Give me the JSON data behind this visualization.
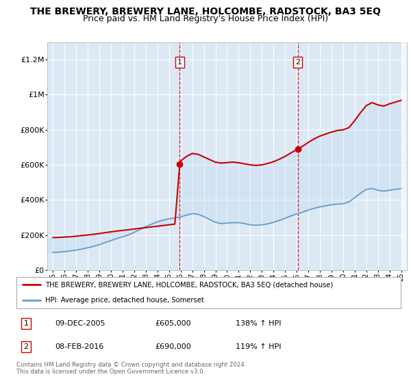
{
  "title": "THE BREWERY, BREWERY LANE, HOLCOMBE, RADSTOCK, BA3 5EQ",
  "subtitle": "Price paid vs. HM Land Registry's House Price Index (HPI)",
  "title_fontsize": 10,
  "subtitle_fontsize": 9,
  "ylim": [
    0,
    1300000
  ],
  "yticks": [
    0,
    200000,
    400000,
    600000,
    800000,
    1000000,
    1200000
  ],
  "ytick_labels": [
    "£0",
    "£200K",
    "£400K",
    "£600K",
    "£800K",
    "£1M",
    "£1.2M"
  ],
  "xlim_start": 1994.5,
  "xlim_end": 2025.5,
  "background_color": "#ffffff",
  "plot_bg_color": "#dce9f5",
  "grid_color": "#ffffff",
  "red_color": "#cc0000",
  "blue_color": "#6699cc",
  "sale1_x": 2005.92,
  "sale1_y": 605000,
  "sale2_x": 2016.1,
  "sale2_y": 690000,
  "legend_label_red": "THE BREWERY, BREWERY LANE, HOLCOMBE, RADSTOCK, BA3 5EQ (detached house)",
  "legend_label_blue": "HPI: Average price, detached house, Somerset",
  "annotation1_label": "1",
  "annotation2_label": "2",
  "table_row1": [
    "1",
    "09-DEC-2005",
    "£605,000",
    "138% ↑ HPI"
  ],
  "table_row2": [
    "2",
    "08-FEB-2016",
    "£690,000",
    "119% ↑ HPI"
  ],
  "footer": "Contains HM Land Registry data © Crown copyright and database right 2024.\nThis data is licensed under the Open Government Licence v3.0.",
  "hpi_years": [
    1995,
    1995.5,
    1996,
    1996.5,
    1997,
    1997.5,
    1998,
    1998.5,
    1999,
    1999.5,
    2000,
    2000.5,
    2001,
    2001.5,
    2002,
    2002.5,
    2003,
    2003.5,
    2004,
    2004.5,
    2005,
    2005.5,
    2006,
    2006.5,
    2007,
    2007.5,
    2008,
    2008.5,
    2009,
    2009.5,
    2010,
    2010.5,
    2011,
    2011.5,
    2012,
    2012.5,
    2013,
    2013.5,
    2014,
    2014.5,
    2015,
    2015.5,
    2016,
    2016.5,
    2017,
    2017.5,
    2018,
    2018.5,
    2019,
    2019.5,
    2020,
    2020.5,
    2021,
    2021.5,
    2022,
    2022.5,
    2023,
    2023.5,
    2024,
    2024.5,
    2025
  ],
  "hpi_values": [
    100000,
    102000,
    105000,
    109000,
    114000,
    120000,
    127000,
    135000,
    145000,
    157000,
    168000,
    180000,
    190000,
    200000,
    215000,
    232000,
    248000,
    262000,
    275000,
    285000,
    292000,
    297000,
    303000,
    313000,
    322000,
    318000,
    305000,
    288000,
    272000,
    265000,
    268000,
    270000,
    270000,
    265000,
    258000,
    255000,
    258000,
    263000,
    272000,
    283000,
    295000,
    308000,
    320000,
    330000,
    342000,
    352000,
    360000,
    366000,
    372000,
    376000,
    378000,
    388000,
    412000,
    438000,
    460000,
    465000,
    455000,
    450000,
    455000,
    460000,
    465000
  ],
  "red_years": [
    1995.0,
    1995.5,
    1996.0,
    1996.5,
    1997.0,
    1997.5,
    1998.0,
    1998.5,
    1999.0,
    1999.5,
    2000.0,
    2000.5,
    2001.0,
    2001.5,
    2002.0,
    2002.5,
    2003.0,
    2003.5,
    2004.0,
    2004.5,
    2005.0,
    2005.5,
    2005.92,
    2006.0,
    2006.5,
    2007.0,
    2007.5,
    2008.0,
    2008.5,
    2009.0,
    2009.5,
    2010.0,
    2010.5,
    2011.0,
    2011.5,
    2012.0,
    2012.5,
    2013.0,
    2013.5,
    2014.0,
    2014.5,
    2015.0,
    2015.5,
    2016.1,
    2016.5,
    2017.0,
    2017.5,
    2018.0,
    2018.5,
    2019.0,
    2019.5,
    2020.0,
    2020.5,
    2021.0,
    2021.5,
    2022.0,
    2022.5,
    2023.0,
    2023.5,
    2024.0,
    2024.5,
    2025.0
  ],
  "red_values": [
    185000,
    186000,
    188000,
    190000,
    193000,
    197000,
    200000,
    204000,
    208000,
    213000,
    218000,
    222000,
    226000,
    230000,
    234000,
    238000,
    242000,
    246000,
    250000,
    254000,
    258000,
    262000,
    605000,
    622000,
    648000,
    665000,
    660000,
    645000,
    630000,
    615000,
    610000,
    613000,
    616000,
    612000,
    606000,
    600000,
    597000,
    600000,
    608000,
    618000,
    632000,
    648000,
    668000,
    690000,
    706000,
    728000,
    748000,
    764000,
    776000,
    787000,
    796000,
    800000,
    812000,
    852000,
    898000,
    938000,
    955000,
    942000,
    935000,
    948000,
    958000,
    968000
  ]
}
